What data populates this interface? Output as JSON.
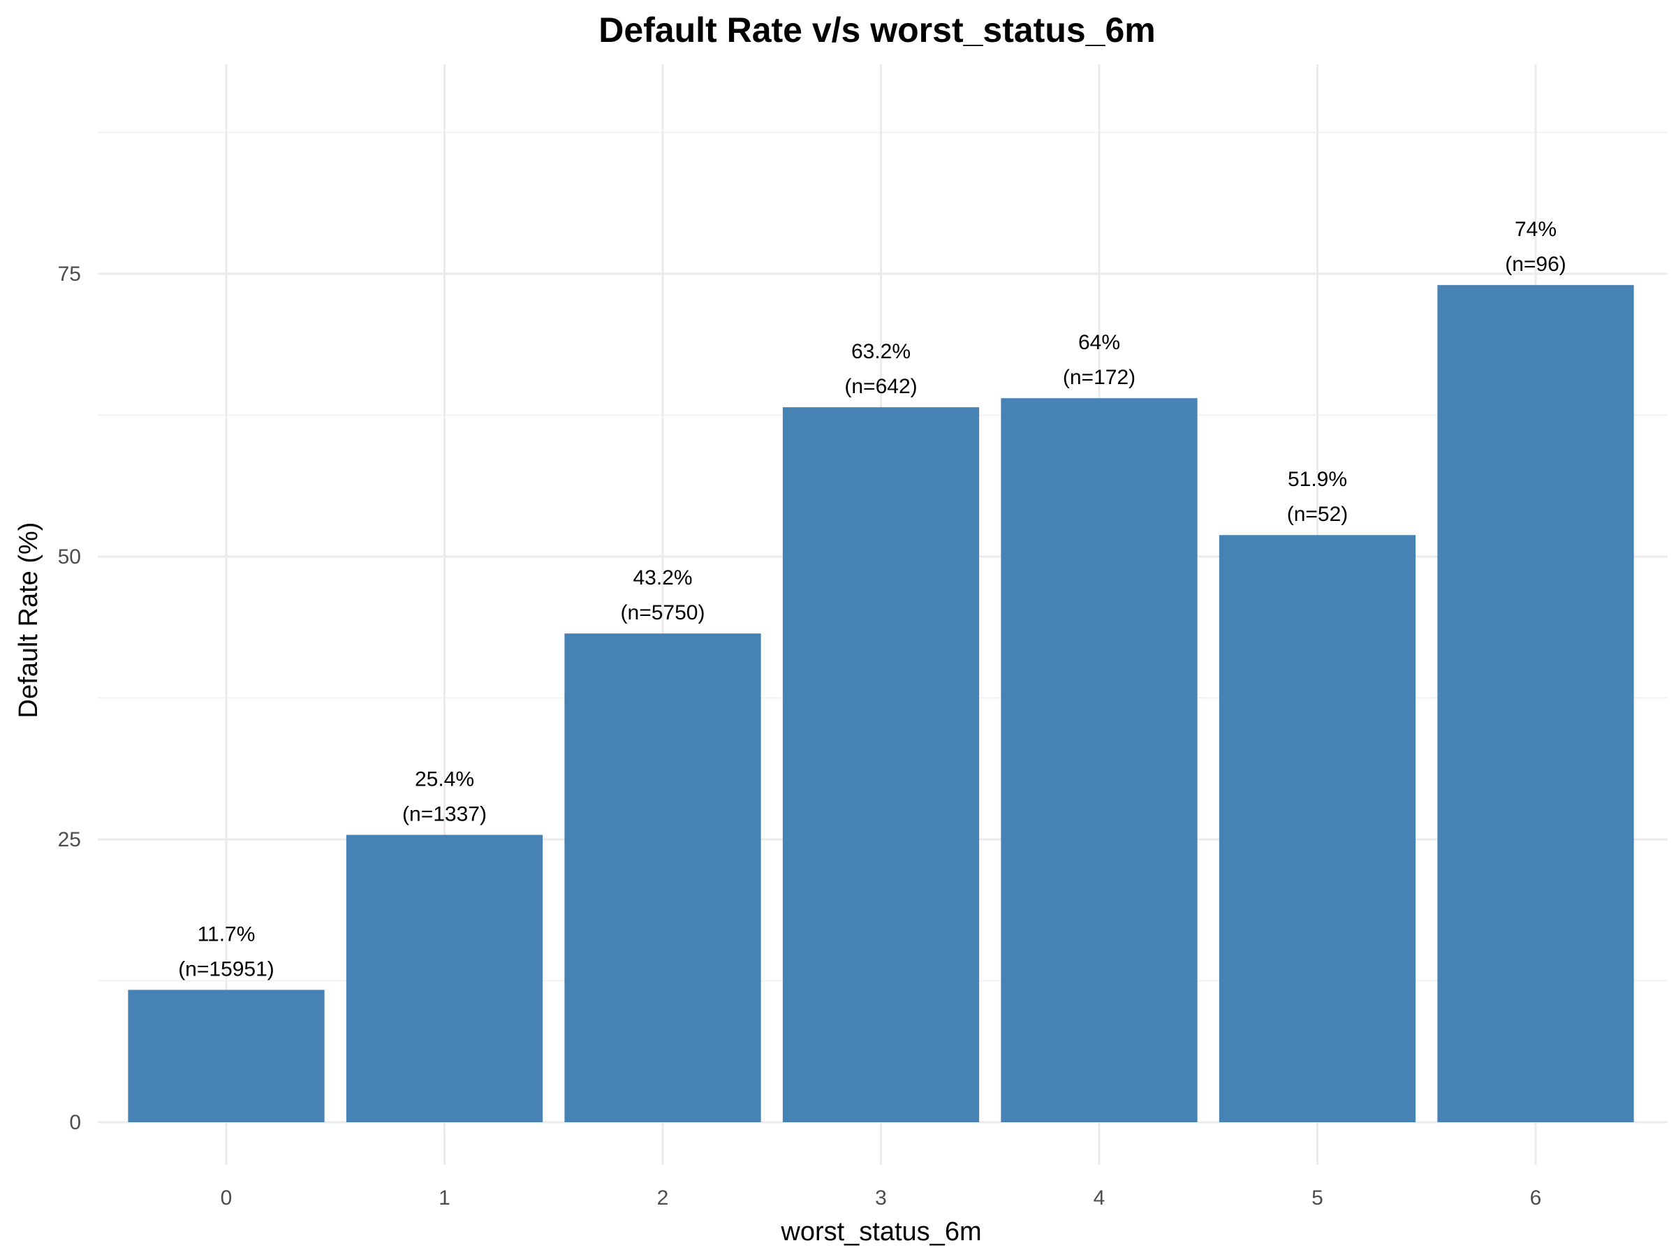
{
  "chart_data": {
    "type": "bar",
    "title": "Default Rate v/s worst_status_6m",
    "xlabel": "worst_status_6m",
    "ylabel": "Default Rate (%)",
    "categories": [
      "0",
      "1",
      "2",
      "3",
      "4",
      "5",
      "6"
    ],
    "values": [
      11.7,
      25.4,
      43.2,
      63.2,
      64,
      51.9,
      74
    ],
    "value_labels": [
      "11.7%",
      "25.4%",
      "43.2%",
      "63.2%",
      "64%",
      "51.9%",
      "74%"
    ],
    "count_labels": [
      "(n=15951)",
      "(n=1337)",
      "(n=5750)",
      "(n=642)",
      "(n=172)",
      "(n=52)",
      "(n=96)"
    ],
    "y_ticks": [
      0,
      25,
      50,
      75
    ],
    "y_tick_labels": [
      "0",
      "25",
      "50",
      "75"
    ],
    "ylim": [
      0,
      90
    ],
    "grid": true,
    "legend": "none",
    "colors": {
      "bar": "#4682b4",
      "grid_major": "#ebebeb",
      "grid_minor": "#f2f2f2",
      "tick_text": "#4d4d4d",
      "text": "#000000"
    }
  }
}
